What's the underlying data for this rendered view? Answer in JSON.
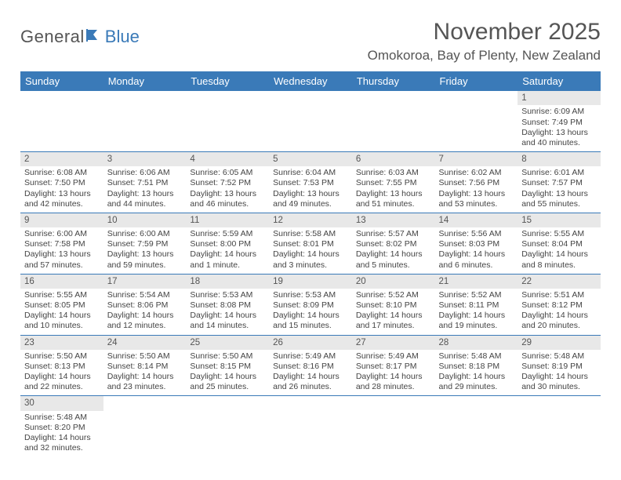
{
  "brand": {
    "general": "General",
    "blue": "Blue"
  },
  "title": "November 2025",
  "location": "Omokoroa, Bay of Plenty, New Zealand",
  "colors": {
    "header_bg": "#3a7ab8",
    "header_text": "#ffffff",
    "daynum_bg": "#e8e8e8",
    "text": "#555555",
    "rule": "#3a7ab8"
  },
  "dayNames": [
    "Sunday",
    "Monday",
    "Tuesday",
    "Wednesday",
    "Thursday",
    "Friday",
    "Saturday"
  ],
  "weeks": [
    [
      null,
      null,
      null,
      null,
      null,
      null,
      {
        "n": "1",
        "sr": "6:09 AM",
        "ss": "7:49 PM",
        "dl": "13 hours and 40 minutes."
      }
    ],
    [
      {
        "n": "2",
        "sr": "6:08 AM",
        "ss": "7:50 PM",
        "dl": "13 hours and 42 minutes."
      },
      {
        "n": "3",
        "sr": "6:06 AM",
        "ss": "7:51 PM",
        "dl": "13 hours and 44 minutes."
      },
      {
        "n": "4",
        "sr": "6:05 AM",
        "ss": "7:52 PM",
        "dl": "13 hours and 46 minutes."
      },
      {
        "n": "5",
        "sr": "6:04 AM",
        "ss": "7:53 PM",
        "dl": "13 hours and 49 minutes."
      },
      {
        "n": "6",
        "sr": "6:03 AM",
        "ss": "7:55 PM",
        "dl": "13 hours and 51 minutes."
      },
      {
        "n": "7",
        "sr": "6:02 AM",
        "ss": "7:56 PM",
        "dl": "13 hours and 53 minutes."
      },
      {
        "n": "8",
        "sr": "6:01 AM",
        "ss": "7:57 PM",
        "dl": "13 hours and 55 minutes."
      }
    ],
    [
      {
        "n": "9",
        "sr": "6:00 AM",
        "ss": "7:58 PM",
        "dl": "13 hours and 57 minutes."
      },
      {
        "n": "10",
        "sr": "6:00 AM",
        "ss": "7:59 PM",
        "dl": "13 hours and 59 minutes."
      },
      {
        "n": "11",
        "sr": "5:59 AM",
        "ss": "8:00 PM",
        "dl": "14 hours and 1 minute."
      },
      {
        "n": "12",
        "sr": "5:58 AM",
        "ss": "8:01 PM",
        "dl": "14 hours and 3 minutes."
      },
      {
        "n": "13",
        "sr": "5:57 AM",
        "ss": "8:02 PM",
        "dl": "14 hours and 5 minutes."
      },
      {
        "n": "14",
        "sr": "5:56 AM",
        "ss": "8:03 PM",
        "dl": "14 hours and 6 minutes."
      },
      {
        "n": "15",
        "sr": "5:55 AM",
        "ss": "8:04 PM",
        "dl": "14 hours and 8 minutes."
      }
    ],
    [
      {
        "n": "16",
        "sr": "5:55 AM",
        "ss": "8:05 PM",
        "dl": "14 hours and 10 minutes."
      },
      {
        "n": "17",
        "sr": "5:54 AM",
        "ss": "8:06 PM",
        "dl": "14 hours and 12 minutes."
      },
      {
        "n": "18",
        "sr": "5:53 AM",
        "ss": "8:08 PM",
        "dl": "14 hours and 14 minutes."
      },
      {
        "n": "19",
        "sr": "5:53 AM",
        "ss": "8:09 PM",
        "dl": "14 hours and 15 minutes."
      },
      {
        "n": "20",
        "sr": "5:52 AM",
        "ss": "8:10 PM",
        "dl": "14 hours and 17 minutes."
      },
      {
        "n": "21",
        "sr": "5:52 AM",
        "ss": "8:11 PM",
        "dl": "14 hours and 19 minutes."
      },
      {
        "n": "22",
        "sr": "5:51 AM",
        "ss": "8:12 PM",
        "dl": "14 hours and 20 minutes."
      }
    ],
    [
      {
        "n": "23",
        "sr": "5:50 AM",
        "ss": "8:13 PM",
        "dl": "14 hours and 22 minutes."
      },
      {
        "n": "24",
        "sr": "5:50 AM",
        "ss": "8:14 PM",
        "dl": "14 hours and 23 minutes."
      },
      {
        "n": "25",
        "sr": "5:50 AM",
        "ss": "8:15 PM",
        "dl": "14 hours and 25 minutes."
      },
      {
        "n": "26",
        "sr": "5:49 AM",
        "ss": "8:16 PM",
        "dl": "14 hours and 26 minutes."
      },
      {
        "n": "27",
        "sr": "5:49 AM",
        "ss": "8:17 PM",
        "dl": "14 hours and 28 minutes."
      },
      {
        "n": "28",
        "sr": "5:48 AM",
        "ss": "8:18 PM",
        "dl": "14 hours and 29 minutes."
      },
      {
        "n": "29",
        "sr": "5:48 AM",
        "ss": "8:19 PM",
        "dl": "14 hours and 30 minutes."
      }
    ],
    [
      {
        "n": "30",
        "sr": "5:48 AM",
        "ss": "8:20 PM",
        "dl": "14 hours and 32 minutes."
      },
      null,
      null,
      null,
      null,
      null,
      null
    ]
  ],
  "labels": {
    "sunrise": "Sunrise:",
    "sunset": "Sunset:",
    "daylight": "Daylight:"
  }
}
